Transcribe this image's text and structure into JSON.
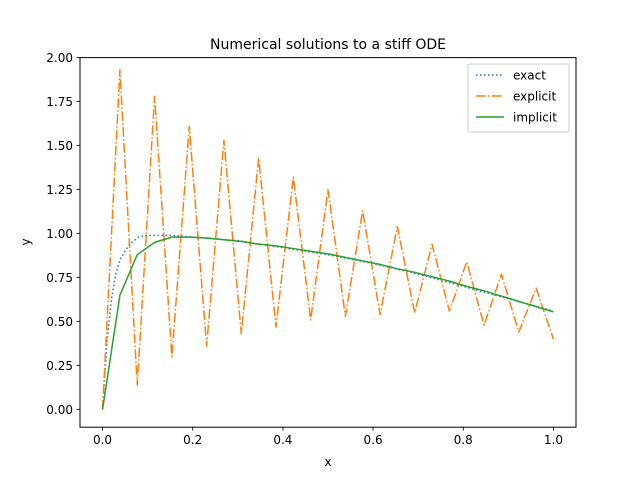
{
  "chart_data": {
    "type": "line",
    "title": "Numerical solutions to a stiff ODE",
    "xlabel": "x",
    "ylabel": "y",
    "xlim": [
      -0.05,
      1.05
    ],
    "ylim": [
      -0.1,
      2.0
    ],
    "xticks": [
      0.0,
      0.2,
      0.4,
      0.6,
      0.8,
      1.0
    ],
    "xtick_labels": [
      "0.0",
      "0.2",
      "0.4",
      "0.6",
      "0.8",
      "1.0"
    ],
    "yticks": [
      0.0,
      0.25,
      0.5,
      0.75,
      1.0,
      1.25,
      1.5,
      1.75,
      2.0
    ],
    "ytick_labels": [
      "0.00",
      "0.25",
      "0.50",
      "0.75",
      "1.00",
      "1.25",
      "1.50",
      "1.75",
      "2.00"
    ],
    "legend_position": "top-right",
    "series": [
      {
        "name": "exact",
        "color": "#1f77b4",
        "style": "dotted",
        "x": [
          0.0,
          0.01,
          0.02,
          0.03,
          0.04,
          0.06,
          0.08,
          0.1,
          0.15,
          0.2,
          0.3,
          0.4,
          0.5,
          0.6,
          0.7,
          0.8,
          0.9,
          1.0
        ],
        "y": [
          0.0,
          0.39,
          0.63,
          0.78,
          0.86,
          0.94,
          0.98,
          0.99,
          0.99,
          0.98,
          0.96,
          0.92,
          0.88,
          0.83,
          0.77,
          0.7,
          0.63,
          0.56
        ]
      },
      {
        "name": "explicit",
        "color": "#ff7f0e",
        "style": "dashdot",
        "x": [
          0.0,
          0.0385,
          0.0769,
          0.1154,
          0.1538,
          0.1923,
          0.2308,
          0.2692,
          0.3077,
          0.3462,
          0.3846,
          0.4231,
          0.4615,
          0.5,
          0.5385,
          0.5769,
          0.6154,
          0.6538,
          0.6923,
          0.7308,
          0.7692,
          0.8077,
          0.8462,
          0.8846,
          0.9231,
          0.9615,
          1.0
        ],
        "y": [
          0.0,
          1.93,
          0.14,
          1.78,
          0.3,
          1.61,
          0.36,
          1.53,
          0.43,
          1.43,
          0.47,
          1.32,
          0.51,
          1.25,
          0.53,
          1.13,
          0.54,
          1.04,
          0.55,
          0.94,
          0.56,
          0.84,
          0.48,
          0.77,
          0.44,
          0.69,
          0.4
        ]
      },
      {
        "name": "implicit",
        "color": "#2ca02c",
        "style": "solid",
        "x": [
          0.0,
          0.0385,
          0.0769,
          0.1154,
          0.1538,
          0.1923,
          0.2308,
          0.2692,
          0.3077,
          0.3462,
          0.3846,
          0.4231,
          0.4615,
          0.5,
          0.5385,
          0.5769,
          0.6154,
          0.6538,
          0.6923,
          0.7308,
          0.7692,
          0.8077,
          0.8462,
          0.8846,
          0.9231,
          0.9615,
          1.0
        ],
        "y": [
          0.0,
          0.65,
          0.88,
          0.95,
          0.98,
          0.98,
          0.975,
          0.965,
          0.955,
          0.94,
          0.93,
          0.915,
          0.9,
          0.885,
          0.865,
          0.845,
          0.825,
          0.8,
          0.78,
          0.755,
          0.73,
          0.7,
          0.675,
          0.645,
          0.615,
          0.585,
          0.555
        ]
      }
    ]
  }
}
